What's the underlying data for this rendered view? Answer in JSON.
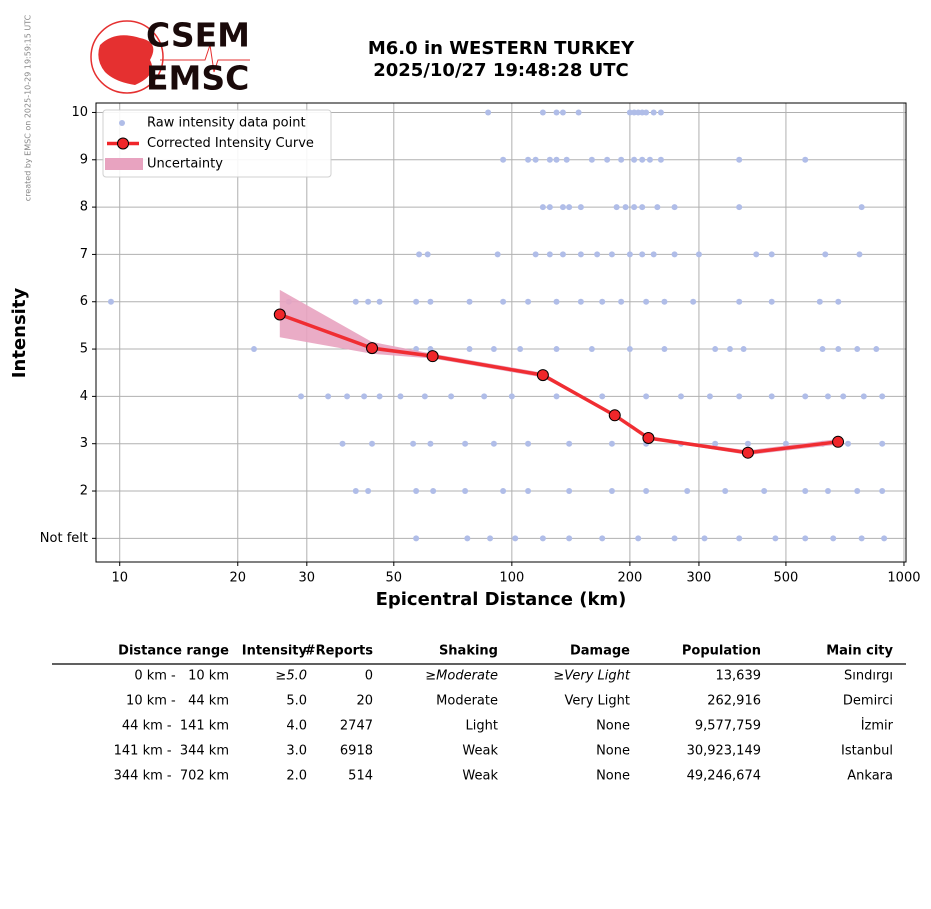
{
  "credit": "created by EMSC on 2025-10-29 19:59:15 UTC",
  "logo": {
    "top": "CSEM",
    "bottom": "EMSC"
  },
  "chart_data": {
    "type": "line",
    "title": "M6.0 in WESTERN TURKEY",
    "subtitle": "2025/10/27 19:48:28 UTC",
    "x_label": "Epicentral Distance (km)",
    "y_label": "Intensity",
    "xscale": "log",
    "grid": true,
    "legend": "upper left",
    "xlim": [
      8.7,
      1012
    ],
    "ylim": [
      0.5,
      10.2
    ],
    "xticks": [
      10,
      20,
      30,
      50,
      100,
      200,
      300,
      500,
      1000
    ],
    "yticks": [
      {
        "value": 1,
        "label": "Not felt"
      },
      2,
      3,
      4,
      5,
      6,
      7,
      8,
      9,
      10
    ],
    "series": [
      {
        "name": "Raw intensity data point",
        "kind": "scatter",
        "color": "#b0bde8",
        "x": [
          87,
          120,
          130,
          135,
          148,
          200,
          205,
          210,
          215,
          220,
          230,
          240,
          95,
          110,
          115,
          125,
          130,
          138,
          160,
          175,
          190,
          205,
          215,
          225,
          240,
          380,
          560,
          120,
          125,
          135,
          140,
          150,
          185,
          195,
          205,
          215,
          235,
          260,
          380,
          780,
          58,
          61,
          92,
          115,
          125,
          135,
          150,
          165,
          180,
          200,
          215,
          230,
          260,
          300,
          420,
          460,
          630,
          770,
          9.5,
          27,
          40,
          43,
          46,
          57,
          62,
          78,
          95,
          110,
          130,
          150,
          170,
          190,
          220,
          245,
          290,
          380,
          460,
          610,
          680,
          22,
          57,
          62,
          78,
          90,
          105,
          130,
          160,
          200,
          245,
          330,
          360,
          390,
          620,
          680,
          760,
          850,
          29,
          34,
          38,
          42,
          46,
          52,
          60,
          70,
          85,
          100,
          130,
          170,
          220,
          270,
          320,
          380,
          460,
          560,
          640,
          700,
          790,
          880,
          37,
          44,
          56,
          62,
          76,
          90,
          110,
          140,
          180,
          220,
          270,
          330,
          400,
          500,
          620,
          720,
          880,
          40,
          43,
          57,
          63,
          76,
          95,
          110,
          140,
          180,
          220,
          280,
          350,
          440,
          560,
          640,
          760,
          880,
          57,
          77,
          88,
          102,
          120,
          140,
          170,
          210,
          260,
          310,
          380,
          470,
          560,
          660,
          780,
          890
        ],
        "values": [
          10,
          10,
          10,
          10,
          10,
          10,
          10,
          10,
          10,
          10,
          10,
          10,
          9,
          9,
          9,
          9,
          9,
          9,
          9,
          9,
          9,
          9,
          9,
          9,
          9,
          9,
          9,
          8,
          8,
          8,
          8,
          8,
          8,
          8,
          8,
          8,
          8,
          8,
          8,
          8,
          7,
          7,
          7,
          7,
          7,
          7,
          7,
          7,
          7,
          7,
          7,
          7,
          7,
          7,
          7,
          7,
          7,
          7,
          6,
          6,
          6,
          6,
          6,
          6,
          6,
          6,
          6,
          6,
          6,
          6,
          6,
          6,
          6,
          6,
          6,
          6,
          6,
          6,
          6,
          5,
          5,
          5,
          5,
          5,
          5,
          5,
          5,
          5,
          5,
          5,
          5,
          5,
          5,
          5,
          5,
          5,
          4,
          4,
          4,
          4,
          4,
          4,
          4,
          4,
          4,
          4,
          4,
          4,
          4,
          4,
          4,
          4,
          4,
          4,
          4,
          4,
          4,
          4,
          3,
          3,
          3,
          3,
          3,
          3,
          3,
          3,
          3,
          3,
          3,
          3,
          3,
          3,
          3,
          3,
          3,
          2,
          2,
          2,
          2,
          2,
          2,
          2,
          2,
          2,
          2,
          2,
          2,
          2,
          2,
          2,
          2,
          2,
          1,
          1,
          1,
          1,
          1,
          1,
          1,
          1,
          1,
          1,
          1,
          1,
          1,
          1,
          1,
          1
        ]
      },
      {
        "name": "Corrected Intensity Curve",
        "kind": "line",
        "color": "#f0262a",
        "x": [
          25.6,
          44,
          62.8,
          120,
          183,
          223,
          400,
          679
        ],
        "values": [
          5.73,
          5.02,
          4.85,
          4.45,
          3.6,
          3.12,
          2.81,
          3.04
        ]
      },
      {
        "name": "Uncertainty",
        "kind": "band",
        "color": "#e8a3c0",
        "x": [
          25.6,
          44,
          62.8,
          120,
          183,
          223,
          400,
          679
        ],
        "upper": [
          6.25,
          5.15,
          4.9,
          4.5,
          3.62,
          3.15,
          2.86,
          3.1
        ],
        "lower": [
          5.25,
          4.9,
          4.8,
          4.4,
          3.58,
          3.1,
          2.76,
          2.98
        ]
      }
    ]
  },
  "table": {
    "columns": [
      "Distance range",
      "Intensity",
      "#Reports",
      "Shaking",
      "Damage",
      "Population",
      "Main city"
    ],
    "rows": [
      [
        "0 km -   10 km",
        "≥5.0",
        "0",
        "≥Moderate",
        "≥Very Light",
        "13,639",
        "Sındırgı"
      ],
      [
        "10 km -   44 km",
        "5.0",
        "20",
        "Moderate",
        "Very Light",
        "262,916",
        "Demirci"
      ],
      [
        "44 km -  141 km",
        "4.0",
        "2747",
        "Light",
        "None",
        "9,577,759",
        "İzmir"
      ],
      [
        "141 km -  344 km",
        "3.0",
        "6918",
        "Weak",
        "None",
        "30,923,149",
        "Istanbul"
      ],
      [
        "344 km -  702 km",
        "2.0",
        "514",
        "Weak",
        "None",
        "49,246,674",
        "Ankara"
      ]
    ]
  }
}
